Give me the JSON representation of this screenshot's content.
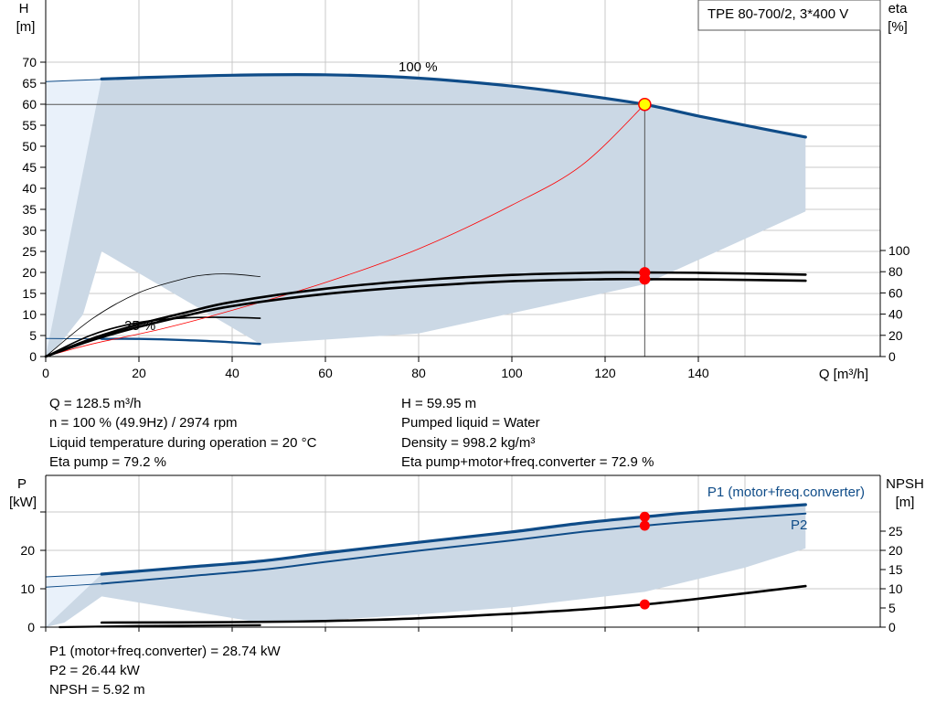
{
  "pump": {
    "model": "TPE 80-700/2, 3*400 V",
    "label_100": "100 %",
    "label_25": "25 %"
  },
  "top_chart": {
    "y_left_label_line1": "H",
    "y_left_label_line2": "[m]",
    "y_right_label_line1": "eta",
    "y_right_label_line2": "[%]",
    "x_label": "Q [m³/h]"
  },
  "bottom_chart": {
    "y_left_label_line1": "P",
    "y_left_label_line2": "[kW]",
    "y_right_label_line1": "NPSH",
    "y_right_label_line2": "[m]",
    "label_p1": "P1 (motor+freq.converter)",
    "label_p2": "P2"
  },
  "operating_info": {
    "q": "Q = 128.5 m³/h",
    "h": "H = 59.95 m",
    "n": "n = 100 % (49.9Hz) / 2974 rpm",
    "liquid": "Pumped liquid = Water",
    "temp": "Liquid temperature during operation = 20 °C",
    "density": "Density = 998.2 kg/m³",
    "eta_pump": "Eta pump = 79.2 %",
    "eta_total": "Eta pump+motor+freq.converter = 72.9 %"
  },
  "power_info": {
    "p1": "P1 (motor+freq.converter) = 28.74 kW",
    "p2": "P2 = 26.44 kW",
    "npsh": "NPSH = 5.92 m"
  },
  "colors": {
    "curve_blue": "#0f4c88",
    "band_fill": "#cbd8e5",
    "band_light": "#e9f1fa",
    "grid": "#c8c8c8",
    "red": "#ff0000",
    "black": "#000000"
  },
  "chart_data": [
    {
      "type": "line",
      "x_axis": {
        "ticks": [
          0,
          20,
          40,
          60,
          80,
          100,
          120,
          140
        ],
        "range": [
          0,
          175
        ]
      },
      "y_left_axis": {
        "ticks": [
          0,
          5,
          10,
          15,
          20,
          25,
          30,
          35,
          40,
          45,
          50,
          55,
          60,
          65,
          70
        ],
        "range": [
          0,
          75
        ]
      },
      "y_right_axis": {
        "ticks": [
          0,
          20,
          40,
          60,
          80,
          100
        ],
        "range": [
          0,
          100
        ]
      },
      "grid": true,
      "series": [
        {
          "name": "100 %",
          "axis": "H",
          "points": [
            [
              12,
              66
            ],
            [
              20,
              66.3
            ],
            [
              40,
              66.9
            ],
            [
              60,
              67
            ],
            [
              80,
              66.2
            ],
            [
              100,
              64.3
            ],
            [
              115,
              62.2
            ],
            [
              128.5,
              59.95
            ],
            [
              140,
              57.2
            ],
            [
              155,
              53.9
            ],
            [
              163,
              52.2
            ]
          ]
        },
        {
          "name": "25 %",
          "axis": "H",
          "points": [
            [
              12,
              4.2
            ],
            [
              20,
              4.2
            ],
            [
              30,
              3.9
            ],
            [
              40,
              3.4
            ],
            [
              46,
              3.0
            ]
          ]
        },
        {
          "axis": "H",
          "points": [
            [
              0,
              65.4
            ],
            [
              12,
              65.9
            ]
          ]
        },
        {
          "axis": "H",
          "points": [
            [
              0,
              4.3
            ],
            [
              12,
              4.2
            ]
          ]
        },
        {
          "axis": "H",
          "points": [
            [
              0,
              0
            ],
            [
              10,
              5.2
            ],
            [
              20,
              8.1
            ],
            [
              30,
              9.2
            ],
            [
              40,
              9.3
            ],
            [
              46,
              9.1
            ]
          ]
        },
        {
          "axis": "H",
          "points": [
            [
              0,
              0
            ],
            [
              10,
              9
            ],
            [
              20,
              15.2
            ],
            [
              30,
              18.6
            ],
            [
              35,
              19.5
            ],
            [
              40,
              19.6
            ],
            [
              46,
              19
            ]
          ]
        },
        {
          "axis": "H",
          "points": [
            [
              0,
              0
            ],
            [
              10,
              3
            ],
            [
              25,
              6.6
            ],
            [
              40,
              11
            ],
            [
              60,
              17.6
            ],
            [
              80,
              25.6
            ],
            [
              100,
              36
            ],
            [
              115,
              45.5
            ],
            [
              128.5,
              59.95
            ]
          ]
        },
        {
          "axis": "eta",
          "points": [
            [
              0,
              0
            ],
            [
              10,
              15.5
            ],
            [
              20,
              28
            ],
            [
              30,
              38.5
            ],
            [
              40,
              47.6
            ],
            [
              60,
              59
            ],
            [
              80,
              66.2
            ],
            [
              100,
              71
            ],
            [
              120,
              72.9
            ],
            [
              128.5,
              72.9
            ],
            [
              140,
              72.8
            ],
            [
              163,
              71.5
            ]
          ]
        },
        {
          "axis": "eta",
          "points": [
            [
              0,
              0
            ],
            [
              10,
              17
            ],
            [
              20,
              30.5
            ],
            [
              30,
              41.5
            ],
            [
              40,
              51.5
            ],
            [
              60,
              64
            ],
            [
              80,
              72
            ],
            [
              100,
              77
            ],
            [
              120,
              79.2
            ],
            [
              128.5,
              79.2
            ],
            [
              140,
              79
            ],
            [
              163,
              77.2
            ]
          ]
        }
      ],
      "markers": [
        [
          128.5,
          59.95
        ],
        [
          128.5,
          79.2
        ],
        [
          128.5,
          72.9
        ]
      ],
      "envelope": {
        "upper_q": [
          12,
          60,
          100,
          128.5,
          163
        ],
        "upper_h": [
          66,
          67,
          64.3,
          59.95,
          52.2
        ],
        "lower_q": [
          0,
          3,
          8,
          12,
          46,
          80,
          128.5,
          163
        ],
        "lower_h": [
          0,
          3,
          10,
          25,
          3,
          5.5,
          17.2,
          34.5
        ]
      }
    },
    {
      "type": "line",
      "x_axis": {
        "range": [
          0,
          175
        ]
      },
      "y_left_axis": {
        "ticks": [
          0,
          10,
          20
        ],
        "range": [
          0,
          35
        ]
      },
      "y_right_axis": {
        "ticks": [
          0,
          5,
          10,
          15,
          20,
          25
        ],
        "range": [
          0,
          35
        ]
      },
      "grid": true,
      "series": [
        {
          "name": "P1 (motor+freq.converter)",
          "axis": "P",
          "points": [
            [
              12,
              13.8
            ],
            [
              30,
              15.6
            ],
            [
              46,
              17.2
            ],
            [
              60,
              19.3
            ],
            [
              80,
              22.1
            ],
            [
              100,
              24.8
            ],
            [
              115,
              27.1
            ],
            [
              128.5,
              28.74
            ],
            [
              140,
              30
            ],
            [
              163,
              31.9
            ]
          ]
        },
        {
          "name": "P2",
          "axis": "P",
          "points": [
            [
              12,
              11.3
            ],
            [
              30,
              13.2
            ],
            [
              46,
              14.9
            ],
            [
              60,
              17
            ],
            [
              80,
              19.9
            ],
            [
              100,
              22.6
            ],
            [
              115,
              24.8
            ],
            [
              128.5,
              26.44
            ],
            [
              140,
              27.6
            ],
            [
              163,
              29.6
            ]
          ]
        },
        {
          "axis": "P",
          "points": [
            [
              0,
              13.1
            ],
            [
              12,
              13.8
            ]
          ]
        },
        {
          "axis": "P",
          "points": [
            [
              0,
              10.4
            ],
            [
              12,
              11.3
            ]
          ]
        },
        {
          "axis": "NPSH",
          "points": [
            [
              3,
              0
            ],
            [
              20,
              0.3
            ],
            [
              46,
              0.5
            ]
          ]
        },
        {
          "axis": "NPSH",
          "points": [
            [
              12,
              1.2
            ],
            [
              40,
              1.3
            ],
            [
              60,
              1.6
            ],
            [
              80,
              2.3
            ],
            [
              100,
              3.5
            ],
            [
              115,
              4.6
            ],
            [
              128.5,
              5.92
            ],
            [
              140,
              7.4
            ],
            [
              163,
              10.7
            ]
          ]
        }
      ],
      "markers": [
        [
          128.5,
          28.74
        ],
        [
          128.5,
          26.44
        ],
        [
          128.5,
          5.92
        ]
      ],
      "envelope": {
        "upper_q": [
          12,
          46,
          60,
          80,
          100,
          128.5,
          163
        ],
        "upper_p": [
          13.8,
          17.2,
          19.3,
          22.1,
          24.8,
          28.74,
          31.9
        ],
        "lower_q": [
          0,
          4,
          12,
          46,
          60,
          80,
          100,
          128.5,
          150,
          163
        ],
        "lower_p": [
          0,
          1.2,
          8,
          1.2,
          1.8,
          3.3,
          5.2,
          9.2,
          15.5,
          20.5
        ]
      }
    }
  ]
}
